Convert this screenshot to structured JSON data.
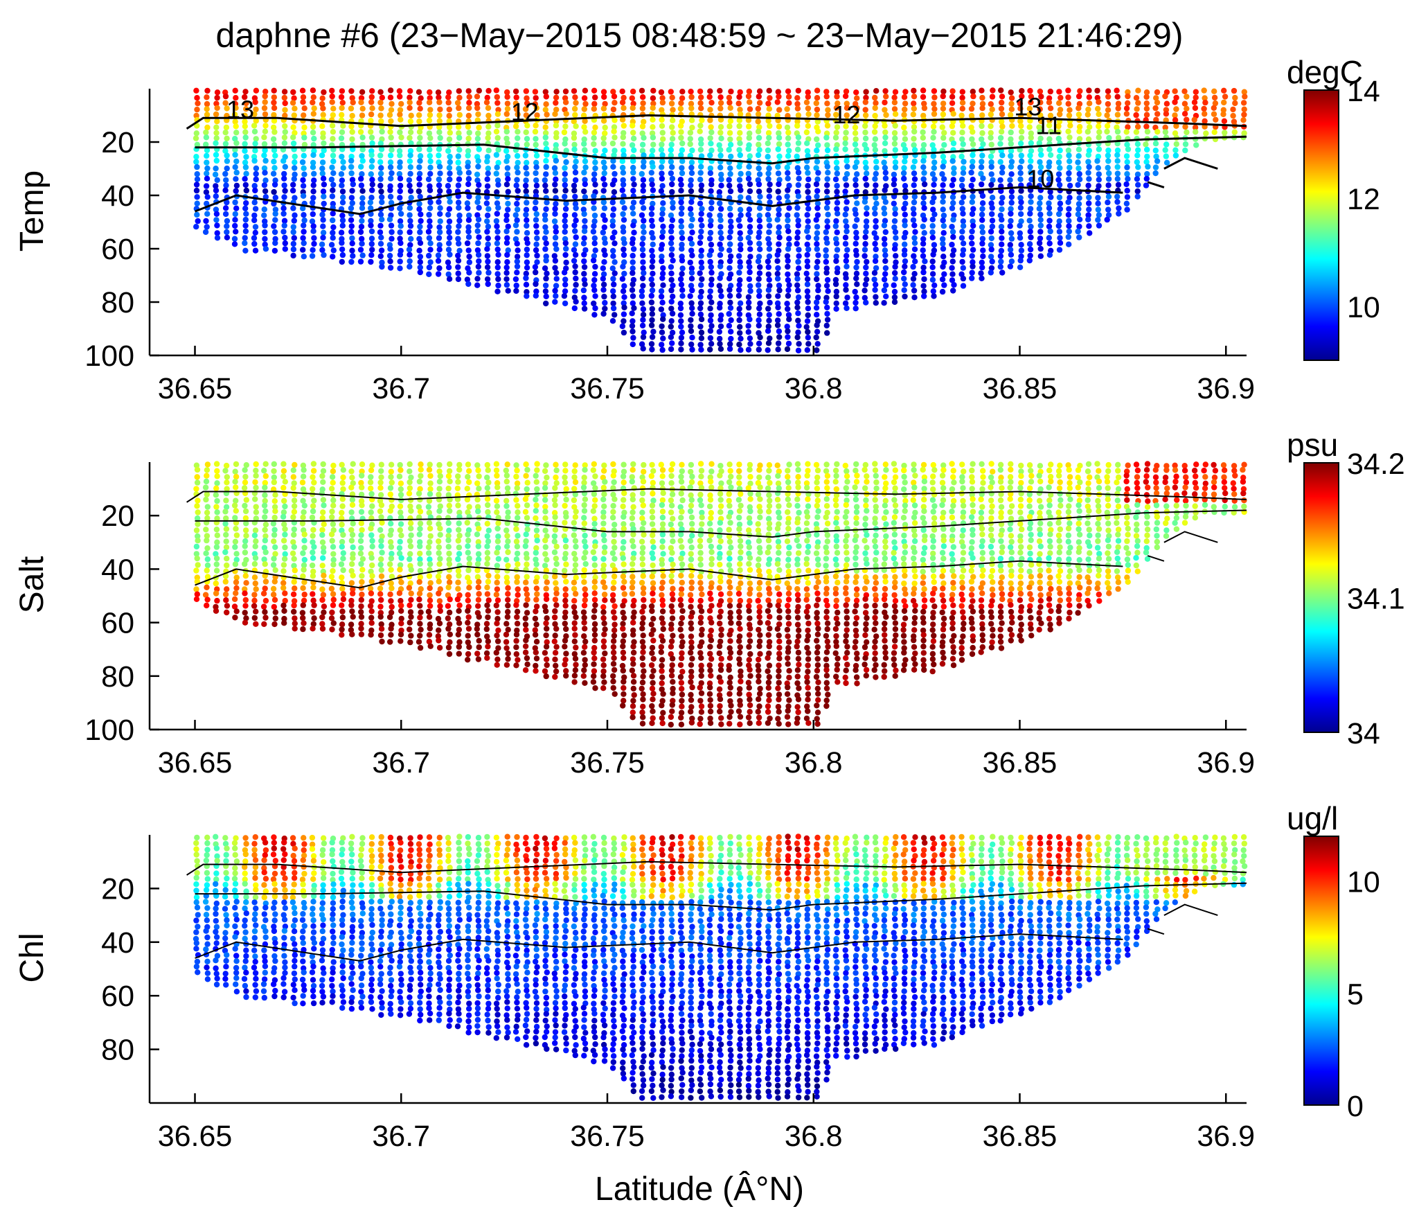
{
  "figure": {
    "title": "daphne #6 (23−May−2015 08:48:59 ~ 23−May−2015 21:46:29)",
    "xlabel": "Latitude (Â°N)"
  },
  "chart_data": [
    {
      "type": "scatter",
      "ylabel": "Temp",
      "xlim": [
        36.639,
        36.905
      ],
      "ylim": [
        0,
        100
      ],
      "y_reversed": true,
      "x_ticks": [
        "36.65",
        "36.7",
        "36.75",
        "36.8",
        "36.85",
        "36.9"
      ],
      "y_ticks": [
        "20",
        "40",
        "60",
        "80",
        "100"
      ],
      "colorbar": {
        "unit": "degC",
        "min": 9,
        "max": 14,
        "ticks": [
          "10",
          "12",
          "14"
        ]
      },
      "contour_labels": [
        "13",
        "12",
        "12",
        "13",
        "11",
        "10"
      ]
    },
    {
      "type": "scatter",
      "ylabel": "Salt",
      "xlim": [
        36.639,
        36.905
      ],
      "ylim": [
        0,
        100
      ],
      "y_reversed": true,
      "x_ticks": [
        "36.65",
        "36.7",
        "36.75",
        "36.8",
        "36.85",
        "36.9"
      ],
      "y_ticks": [
        "20",
        "40",
        "60",
        "80",
        "100"
      ],
      "colorbar": {
        "unit": "psu",
        "min": 34.0,
        "max": 34.2,
        "ticks": [
          "34",
          "34.1",
          "34.2"
        ]
      }
    },
    {
      "type": "scatter",
      "ylabel": "Chl",
      "xlim": [
        36.639,
        36.905
      ],
      "ylim": [
        0,
        100
      ],
      "y_reversed": true,
      "x_ticks": [
        "36.65",
        "36.7",
        "36.75",
        "36.8",
        "36.85",
        "36.9"
      ],
      "y_ticks": [
        "20",
        "40",
        "60",
        "80"
      ],
      "colorbar": {
        "unit": "ug/l",
        "min": 0,
        "max": 12,
        "ticks": [
          "0",
          "5",
          "10"
        ]
      }
    }
  ]
}
